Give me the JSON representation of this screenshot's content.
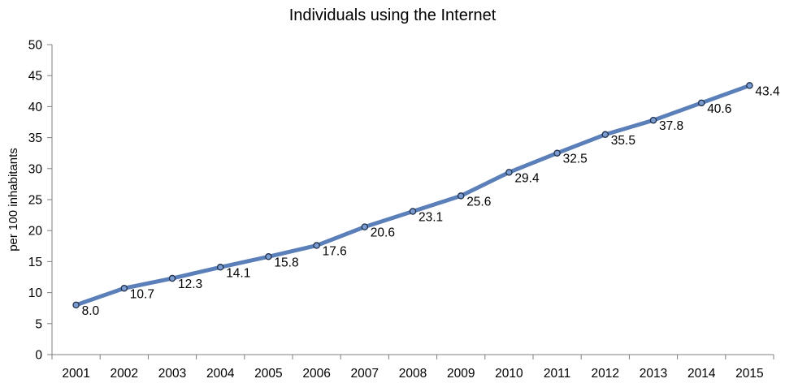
{
  "chart_data": {
    "type": "line",
    "title": "Individuals using the Internet",
    "xlabel": "",
    "ylabel": "per 100 inhabitants",
    "categories": [
      "2001",
      "2002",
      "2003",
      "2004",
      "2005",
      "2006",
      "2007",
      "2008",
      "2009",
      "2010",
      "2011",
      "2012",
      "2013",
      "2014",
      "2015"
    ],
    "series": [
      {
        "values": [
          8.0,
          10.7,
          12.3,
          14.1,
          15.8,
          17.6,
          20.6,
          23.1,
          25.6,
          29.4,
          32.5,
          35.5,
          37.8,
          40.6,
          43.4
        ],
        "labels": [
          "8.0",
          "10.7",
          "12.3",
          "14.1",
          "15.8",
          "17.6",
          "20.6",
          "23.1",
          "25.6",
          "29.4",
          "32.5",
          "35.5",
          "37.8",
          "40.6",
          "43.4"
        ]
      }
    ],
    "ylim": [
      0,
      50
    ],
    "yticks": [
      "0",
      "5",
      "10",
      "15",
      "20",
      "25",
      "30",
      "35",
      "40",
      "45",
      "50"
    ],
    "grid": false,
    "legend": "none",
    "colors": {
      "line": "#5b7fb8",
      "marker_fill": "#7a9cd0",
      "marker_stroke": "#1f2f4a",
      "axis": "#7f7f7f"
    }
  }
}
